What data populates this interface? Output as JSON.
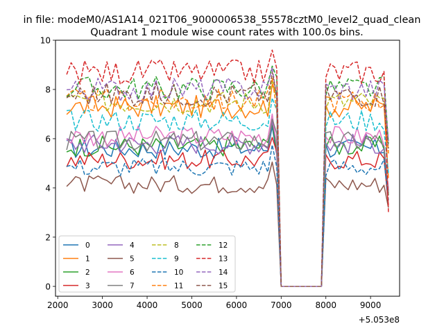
{
  "chart_data": {
    "type": "line",
    "suptitle": "in file: modeM0/AS1A14_021T06_9000006538_55578cztM0_level2_quad_clean",
    "title": "Quadrant 1 module wise count rates with 100.0s bins.",
    "xlabel": "",
    "ylabel": "",
    "x_offset_label": "+5.053e8",
    "x_start": 2200,
    "x_step": 100,
    "x_count": 73,
    "xlim": [
      1950,
      9650
    ],
    "ylim": [
      -0.4,
      10.0
    ],
    "xticks": [
      2000,
      3000,
      4000,
      5000,
      6000,
      7000,
      8000,
      9000
    ],
    "yticks": [
      0,
      2,
      4,
      6,
      8,
      10
    ],
    "grid": false,
    "legend": {
      "placement": "lower-left",
      "columns": 4
    },
    "series": [
      {
        "name": "0",
        "color": "#1f77b4",
        "dash": "solid",
        "level": 5.6,
        "end": 3.8
      },
      {
        "name": "1",
        "color": "#ff7f0e",
        "dash": "solid",
        "level": 7.3,
        "end": 4.4
      },
      {
        "name": "2",
        "color": "#2ca02c",
        "dash": "solid",
        "level": 5.7,
        "end": 3.7
      },
      {
        "name": "3",
        "color": "#d62728",
        "dash": "solid",
        "level": 5.15,
        "end": 3.3
      },
      {
        "name": "4",
        "color": "#9467bd",
        "dash": "solid",
        "level": 5.8,
        "end": 3.9
      },
      {
        "name": "5",
        "color": "#8c564b",
        "dash": "solid",
        "level": 4.15,
        "end": 3.2
      },
      {
        "name": "6",
        "color": "#e377c2",
        "dash": "solid",
        "level": 6.1,
        "end": 4.0
      },
      {
        "name": "7",
        "color": "#7f7f7f",
        "dash": "solid",
        "level": 5.9,
        "end": 3.8
      },
      {
        "name": "8",
        "color": "#bcbd22",
        "dash": "dashed",
        "level": 7.5,
        "end": 5.5
      },
      {
        "name": "9",
        "color": "#17becf",
        "dash": "dashed",
        "level": 6.75,
        "end": 4.6
      },
      {
        "name": "10",
        "color": "#1f77b4",
        "dash": "dashed",
        "level": 4.85,
        "end": 3.5
      },
      {
        "name": "11",
        "color": "#ff7f0e",
        "dash": "dashed",
        "level": 7.55,
        "end": 5.4
      },
      {
        "name": "12",
        "color": "#2ca02c",
        "dash": "dashed",
        "level": 8.05,
        "end": 5.8
      },
      {
        "name": "13",
        "color": "#d62728",
        "dash": "dashed",
        "level": 8.7,
        "end": 3.0
      },
      {
        "name": "14",
        "color": "#9467bd",
        "dash": "dashed",
        "level": 8.0,
        "end": 5.9
      },
      {
        "name": "15",
        "color": "#8c564b",
        "dash": "dashed",
        "level": 7.8,
        "end": 5.6
      }
    ]
  }
}
